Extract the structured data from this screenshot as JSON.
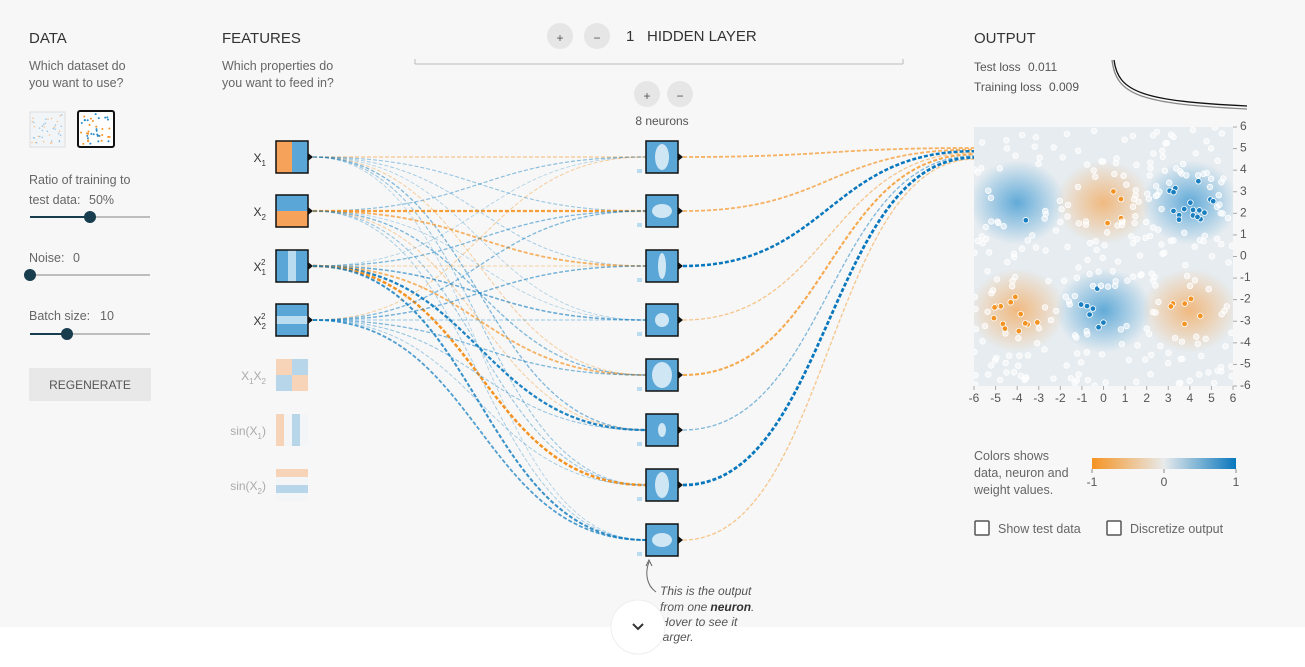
{
  "data_panel": {
    "heading": "DATA",
    "prompt_line1": "Which dataset do",
    "prompt_line2": "you want to use?",
    "ratio_line1": "Ratio of training to",
    "ratio_label": "test data:",
    "ratio_value": "50%",
    "noise_label": "Noise:",
    "noise_value": "0",
    "batch_label": "Batch size:",
    "batch_value": "10",
    "regenerate": "REGENERATE"
  },
  "features_panel": {
    "heading": "FEATURES",
    "prompt_line1": "Which properties do",
    "prompt_line2": "you want to feed in?",
    "features": [
      {
        "base": "X",
        "sub": "1"
      },
      {
        "base": "X",
        "sub": "2"
      },
      {
        "base": "X",
        "sub": "1",
        "sup": "2"
      },
      {
        "base": "X",
        "sub": "2",
        "sup": "2"
      },
      {
        "base": "X",
        "sub": "1",
        "base2": "X",
        "sub2": "2"
      },
      {
        "base": "sin(X",
        "sub": "1",
        "post": ")"
      },
      {
        "base": "sin(X",
        "sub": "2",
        "post": ")"
      }
    ]
  },
  "hidden_panel": {
    "add_layer": "+",
    "remove_layer": "−",
    "layer_count": "1",
    "heading": "HIDDEN LAYER",
    "add_neuron": "+",
    "remove_neuron": "−",
    "neurons_label": "8 neurons",
    "tooltip": {
      "line1": "This is the output",
      "line2_pre": "from one",
      "line2_bold": "neuron",
      "line2_post": ".",
      "line3": "Hover to see it",
      "line4": "larger."
    }
  },
  "output_panel": {
    "heading": "OUTPUT",
    "test_loss_label": "Test loss",
    "test_loss_value": "0.011",
    "training_loss_label": "Training loss",
    "training_loss_value": "0.009",
    "y_ticks": [
      6,
      5,
      4,
      3,
      2,
      1,
      0,
      -1,
      -2,
      -3,
      -4,
      -5,
      -6
    ],
    "x_ticks": [
      -6,
      -5,
      -4,
      -3,
      -2,
      -1,
      0,
      1,
      2,
      3,
      4,
      5,
      6
    ],
    "legend_line1": "Colors shows",
    "legend_line2": "data, neuron and",
    "legend_line3": "weight values.",
    "legend_min": "-1",
    "legend_mid": "0",
    "legend_max": "1",
    "show_test_data": "Show test data",
    "discretize_output": "Discretize output"
  }
}
